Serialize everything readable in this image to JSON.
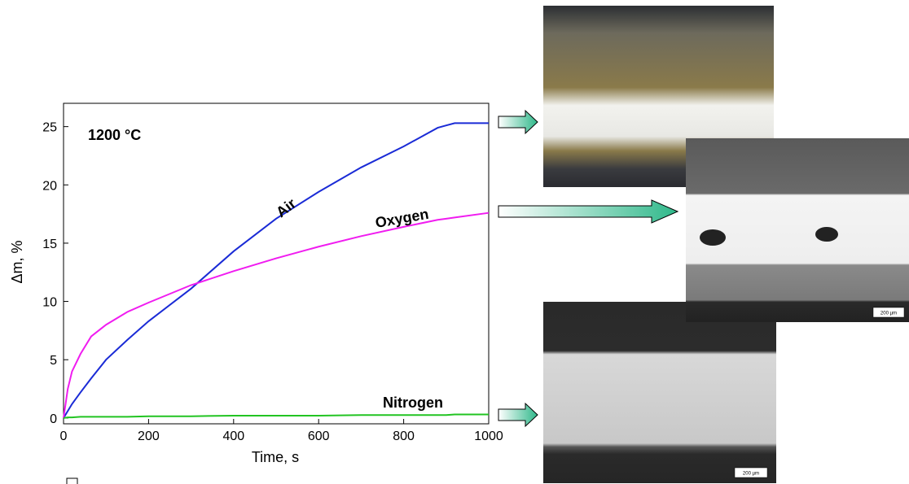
{
  "chart_data": {
    "type": "line",
    "x_label": "Time, s",
    "y_label": "Δm, %",
    "x": [
      0,
      10,
      20,
      40,
      65,
      100,
      150,
      200,
      300,
      400,
      500,
      600,
      700,
      800,
      880,
      900,
      920,
      1000
    ],
    "series": [
      {
        "name": "Air",
        "color": "#1a2bd6",
        "values": [
          0,
          0.6,
          1.2,
          2.2,
          3.4,
          5,
          6.7,
          8.3,
          11.1,
          14.3,
          17.1,
          19.4,
          21.5,
          23.3,
          24.9,
          25.1,
          25.3,
          25.3
        ]
      },
      {
        "name": "Oxygen",
        "color": "#f01cf0",
        "values": [
          0,
          2.5,
          4,
          5.5,
          7,
          8,
          9.1,
          9.9,
          11.4,
          12.6,
          13.7,
          14.7,
          15.6,
          16.4,
          17.0,
          17.1,
          17.2,
          17.6
        ]
      },
      {
        "name": "Nitrogen",
        "color": "#22c422",
        "values": [
          0,
          0.05,
          0.05,
          0.1,
          0.1,
          0.1,
          0.1,
          0.15,
          0.15,
          0.2,
          0.2,
          0.2,
          0.25,
          0.25,
          0.25,
          0.25,
          0.3,
          0.3
        ]
      }
    ],
    "annotations": [
      "1200 °C"
    ],
    "xlim": [
      0,
      1000
    ],
    "xticks": [
      0,
      200,
      400,
      600,
      800,
      1000
    ],
    "ylim": [
      -0.5,
      27
    ],
    "yticks": [
      0,
      5,
      10,
      15,
      20,
      25
    ],
    "grid": false
  },
  "micrographs": [
    {
      "scale_label": "200 µm"
    },
    {
      "scale_label": "200 µm"
    }
  ]
}
